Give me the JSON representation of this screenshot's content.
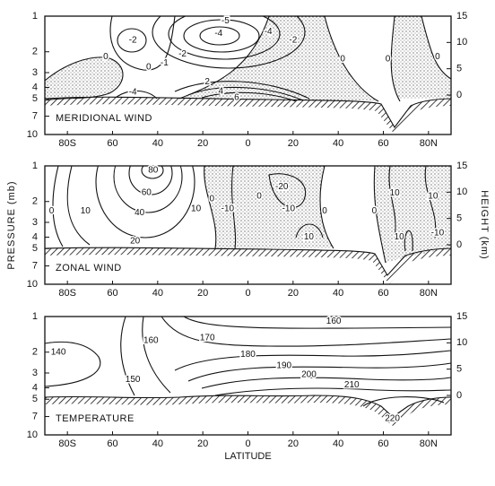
{
  "chart_data": [
    {
      "type": "contour",
      "title": "MERIDIONAL WIND",
      "xlim": [
        -90,
        90
      ],
      "xticks": [
        {
          "value": -80,
          "label": "80S"
        },
        {
          "value": -60,
          "label": "60"
        },
        {
          "value": -40,
          "label": "40"
        },
        {
          "value": -20,
          "label": "20"
        },
        0,
        20,
        40,
        60,
        {
          "value": 80,
          "label": "80N"
        }
      ],
      "ylim": [
        10,
        1
      ],
      "yscale": "log",
      "yticks": [
        1,
        2,
        3,
        4,
        5,
        7,
        10
      ],
      "y2lim": [
        -7.5,
        15
      ],
      "y2ticks": [
        0,
        5,
        10,
        15
      ],
      "annotations": [
        {
          "value": -2,
          "x": -51,
          "y": 1.6
        },
        {
          "value": 0,
          "x": -63,
          "y": 2.2
        },
        {
          "value": 0,
          "x": -44,
          "y": 2.7
        },
        {
          "value": -1,
          "x": -37,
          "y": 2.5
        },
        {
          "value": -2,
          "x": -29,
          "y": 2.1
        },
        {
          "value": -4,
          "x": -13,
          "y": 1.4
        },
        {
          "value": -5,
          "x": -10,
          "y": 1.1
        },
        {
          "value": -4,
          "x": 9,
          "y": 1.35
        },
        {
          "value": -2,
          "x": 20,
          "y": 1.6
        },
        {
          "value": 0,
          "x": 42,
          "y": 2.3
        },
        {
          "value": 0,
          "x": 62,
          "y": 2.3
        },
        {
          "value": 0,
          "x": 84,
          "y": 2.2
        },
        {
          "value": 2,
          "x": -18,
          "y": 3.6
        },
        {
          "value": 4,
          "x": -12,
          "y": 4.3
        },
        {
          "value": 6,
          "x": -5,
          "y": 4.9
        },
        {
          "value": -4,
          "x": -51,
          "y": 4.4
        }
      ]
    },
    {
      "type": "contour",
      "title": "ZONAL WIND",
      "y_label": "PRESSURE (mb)",
      "y2_label": "HEIGHT (km)",
      "xlim": [
        -90,
        90
      ],
      "xticks": [
        {
          "value": -80,
          "label": "80S"
        },
        {
          "value": -60,
          "label": "60"
        },
        {
          "value": -40,
          "label": "40"
        },
        {
          "value": -20,
          "label": "20"
        },
        0,
        20,
        40,
        60,
        {
          "value": 80,
          "label": "80N"
        }
      ],
      "ylim": [
        10,
        1
      ],
      "yscale": "log",
      "yticks": [
        1,
        2,
        3,
        4,
        5,
        7,
        10
      ],
      "y2lim": [
        -7.5,
        15
      ],
      "y2ticks": [
        0,
        5,
        10,
        15
      ],
      "annotations": [
        {
          "value": 80,
          "x": -42,
          "y": 1.09
        },
        {
          "value": 60,
          "x": -45,
          "y": 1.69
        },
        {
          "value": 40,
          "x": -48,
          "y": 2.5
        },
        {
          "value": 20,
          "x": -50,
          "y": 4.3
        },
        {
          "value": 10,
          "x": -72,
          "y": 2.4
        },
        {
          "value": 0,
          "x": -87,
          "y": 2.4
        },
        {
          "value": 10,
          "x": -23,
          "y": 2.3
        },
        {
          "value": 0,
          "x": -16,
          "y": 1.9
        },
        {
          "value": -10,
          "x": -9,
          "y": 2.3
        },
        {
          "value": 0,
          "x": 5,
          "y": 1.8
        },
        {
          "value": -20,
          "x": 15,
          "y": 1.5
        },
        {
          "value": -10,
          "x": 18,
          "y": 2.3
        },
        {
          "value": 0,
          "x": 34,
          "y": 2.4
        },
        {
          "value": 10,
          "x": 27,
          "y": 4.0
        },
        {
          "value": 0,
          "x": 56,
          "y": 2.4
        },
        {
          "value": 10,
          "x": 65,
          "y": 1.7
        },
        {
          "value": 10,
          "x": 82,
          "y": 1.8
        },
        {
          "value": 10,
          "x": 67,
          "y": 4.0
        },
        {
          "value": -10,
          "x": 84,
          "y": 3.7
        }
      ]
    },
    {
      "type": "contour",
      "title": "TEMPERATURE",
      "x_label": "LATITUDE",
      "xlim": [
        -90,
        90
      ],
      "xticks": [
        {
          "value": -80,
          "label": "80S"
        },
        {
          "value": -60,
          "label": "60"
        },
        {
          "value": -40,
          "label": "40"
        },
        {
          "value": -20,
          "label": "20"
        },
        0,
        20,
        40,
        60,
        {
          "value": 80,
          "label": "80N"
        }
      ],
      "ylim": [
        10,
        1
      ],
      "yscale": "log",
      "yticks": [
        1,
        2,
        3,
        4,
        5,
        7,
        10
      ],
      "y2lim": [
        -7.5,
        15
      ],
      "y2ticks": [
        0,
        5,
        10,
        15
      ],
      "annotations": [
        {
          "value": 140,
          "x": -84,
          "y": 2.0
        },
        {
          "value": 150,
          "x": -51,
          "y": 3.4
        },
        {
          "value": 160,
          "x": -43,
          "y": 1.6
        },
        {
          "value": 170,
          "x": -18,
          "y": 1.52
        },
        {
          "value": 180,
          "x": 0,
          "y": 2.1
        },
        {
          "value": 190,
          "x": 16,
          "y": 2.6
        },
        {
          "value": 200,
          "x": 27,
          "y": 3.1
        },
        {
          "value": 210,
          "x": 46,
          "y": 3.8
        },
        {
          "value": 220,
          "x": 64,
          "y": 7.3
        },
        {
          "value": 160,
          "x": 38,
          "y": 1.1
        }
      ]
    }
  ]
}
